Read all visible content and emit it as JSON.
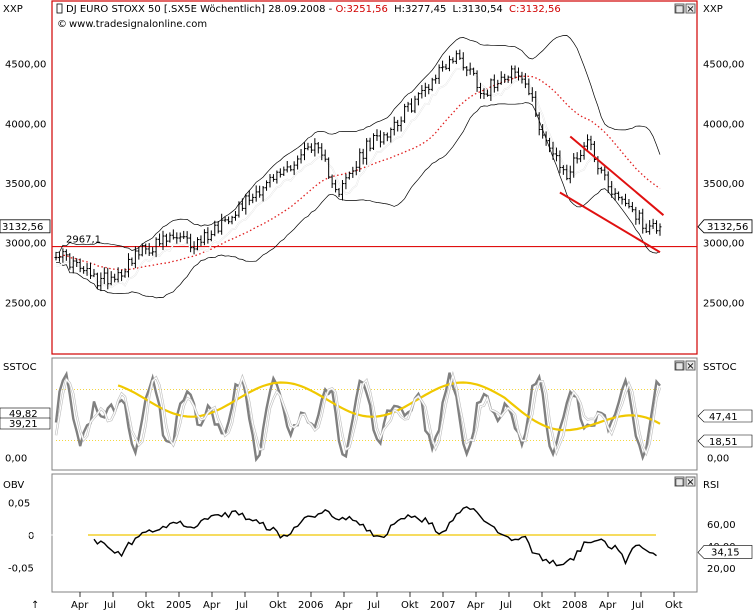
{
  "title_bar": {
    "symbol": "XXP",
    "instrument": "DJ EURO STOXX 50 [.SX5E  Wöchentlich] 28.09.2008",
    "open": "O:3251,56",
    "high": "H:3277,45",
    "low": "L:3130,54",
    "close": "C:3132,56",
    "source": "www.tradesignalonline.com"
  },
  "colors": {
    "price": "#000000",
    "bands": "#000000",
    "ma_dotted": "#e02020",
    "white_line": "#ffffff",
    "trend": "#e01010",
    "yellow": "#f0c800",
    "gray_line": "#808080",
    "grid": "#c8c8c8",
    "panel_bg": "#ffffff",
    "border_red": "#d00000"
  },
  "chart_data": [
    {
      "type": "line",
      "name": "price-panel",
      "title": "DJ EURO STOXX 50 [.SX5E  Wöchentlich] 28.09.2008",
      "left_axis_label": "XXP",
      "right_axis_label": "XXP",
      "ylim": [
        2100,
        4950
      ],
      "yticks": [
        2500,
        3000,
        3500,
        4000,
        4500
      ],
      "ytick_labels": [
        "2500,00",
        "3000,00",
        "3500,00",
        "4000,00",
        "4500,00"
      ],
      "last_value_label_left": "3132,56",
      "last_value_label_right": "3132,56",
      "horizontal_line": {
        "value": 2967.1,
        "label": "2967,1"
      },
      "price_waypoints": [
        [
          0,
          2930
        ],
        [
          6,
          2800
        ],
        [
          12,
          2680
        ],
        [
          16,
          2720
        ],
        [
          19,
          2760
        ],
        [
          22,
          2880
        ],
        [
          28,
          2970
        ],
        [
          34,
          3040
        ],
        [
          40,
          2980
        ],
        [
          46,
          3120
        ],
        [
          52,
          3280
        ],
        [
          58,
          3430
        ],
        [
          64,
          3560
        ],
        [
          70,
          3700
        ],
        [
          74,
          3830
        ],
        [
          78,
          3650
        ],
        [
          82,
          3430
        ],
        [
          86,
          3600
        ],
        [
          90,
          3800
        ],
        [
          96,
          3940
        ],
        [
          102,
          4120
        ],
        [
          108,
          4330
        ],
        [
          112,
          4480
        ],
        [
          116,
          4560
        ],
        [
          120,
          4450
        ],
        [
          124,
          4250
        ],
        [
          128,
          4380
        ],
        [
          132,
          4450
        ],
        [
          136,
          4330
        ],
        [
          140,
          4000
        ],
        [
          144,
          3720
        ],
        [
          148,
          3560
        ],
        [
          151,
          3720
        ],
        [
          154,
          3870
        ],
        [
          158,
          3600
        ],
        [
          162,
          3400
        ],
        [
          166,
          3330
        ],
        [
          170,
          3150
        ],
        [
          172,
          3132
        ]
      ],
      "series": [
        {
          "name": "weekly bars"
        },
        {
          "name": "bollinger bands"
        },
        {
          "name": "moving average (dotted)"
        },
        {
          "name": "moving average (white)"
        },
        {
          "name": "trend channel"
        }
      ],
      "trendlines": [
        {
          "from": [
            149,
            3890
          ],
          "to": [
            176,
            3230
          ]
        },
        {
          "from": [
            146,
            3420
          ],
          "to": [
            175,
            2920
          ]
        }
      ]
    },
    {
      "type": "line",
      "name": "stochastic-panel",
      "left_axis_label": "SSTOC",
      "right_axis_label": "SSTOC",
      "ylim": [
        -12,
        112
      ],
      "yticks": [
        0
      ],
      "ytick_labels": [
        "0,00"
      ],
      "left_value_labels": [
        "49,82",
        "39,21"
      ],
      "right_value_labels": [
        "47,41",
        "18,51"
      ],
      "right_bottom_labels": [
        "0,00"
      ],
      "reference_levels": [
        20,
        80
      ],
      "series": [
        {
          "name": "%K (gray)"
        },
        {
          "name": "%D (white)"
        },
        {
          "name": "yellow signal"
        }
      ]
    },
    {
      "type": "line",
      "name": "obv-panel",
      "left_axis_label": "OBV",
      "right_axis_label": "RSI",
      "ylim": [
        -0.085,
        0.085
      ],
      "yticks": [
        0.05,
        0,
        -0.05
      ],
      "ytick_labels": [
        "0,05",
        "0",
        "-0,05"
      ],
      "right_ytick_values": [
        60,
        40,
        20
      ],
      "right_ytick_labels": [
        "60,00",
        "40,00",
        "20,00"
      ],
      "right_last_label": "34,15",
      "yellow_level_label": "0",
      "rsi_waypoints": [
        [
          11,
          44
        ],
        [
          15,
          40
        ],
        [
          19,
          33
        ],
        [
          23,
          48
        ],
        [
          28,
          55
        ],
        [
          34,
          62
        ],
        [
          40,
          58
        ],
        [
          46,
          66
        ],
        [
          52,
          70
        ],
        [
          58,
          62
        ],
        [
          62,
          56
        ],
        [
          66,
          48
        ],
        [
          72,
          64
        ],
        [
          78,
          72
        ],
        [
          82,
          62
        ],
        [
          86,
          66
        ],
        [
          90,
          54
        ],
        [
          94,
          46
        ],
        [
          98,
          60
        ],
        [
          102,
          68
        ],
        [
          108,
          62
        ],
        [
          112,
          50
        ],
        [
          116,
          70
        ],
        [
          120,
          74
        ],
        [
          124,
          62
        ],
        [
          128,
          54
        ],
        [
          132,
          46
        ],
        [
          136,
          50
        ],
        [
          138,
          36
        ],
        [
          142,
          26
        ],
        [
          146,
          22
        ],
        [
          150,
          30
        ],
        [
          154,
          46
        ],
        [
          158,
          44
        ],
        [
          162,
          38
        ],
        [
          165,
          27
        ],
        [
          168,
          40
        ],
        [
          171,
          38
        ],
        [
          174,
          34
        ]
      ]
    }
  ],
  "x_axis": {
    "labels": [
      "Apr",
      "Jul",
      "Okt",
      "2005",
      "Apr",
      "Jul",
      "Okt",
      "2006",
      "Apr",
      "Jul",
      "Okt",
      "2007",
      "Apr",
      "Jul",
      "Okt",
      "2008",
      "Apr",
      "Jul",
      "Okt"
    ]
  },
  "window_buttons": {
    "maximize_glyph": "□",
    "close_glyph": "×"
  }
}
